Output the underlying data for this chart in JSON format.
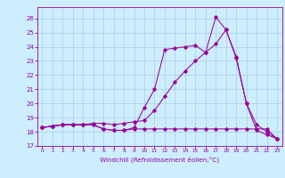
{
  "xlabel": "Windchill (Refroidissement éolien,°C)",
  "bg_color": "#cceeff",
  "line_color": "#990099",
  "grid_color": "#aaccdd",
  "xlim": [
    -0.5,
    23.5
  ],
  "ylim": [
    17,
    26.8
  ],
  "yticks": [
    17,
    18,
    19,
    20,
    21,
    22,
    23,
    24,
    25,
    26
  ],
  "xticks": [
    0,
    1,
    2,
    3,
    4,
    5,
    6,
    7,
    8,
    9,
    10,
    11,
    12,
    13,
    14,
    15,
    16,
    17,
    18,
    19,
    20,
    21,
    22,
    23
  ],
  "line1_x": [
    0,
    1,
    2,
    3,
    4,
    5,
    6,
    7,
    8,
    9,
    10,
    11,
    12,
    13,
    14,
    15,
    16,
    17,
    18,
    19,
    20,
    21,
    22,
    23
  ],
  "line1_y": [
    18.3,
    18.4,
    18.5,
    18.5,
    18.5,
    18.5,
    18.2,
    18.1,
    18.1,
    18.3,
    19.7,
    21.0,
    23.8,
    23.9,
    24.0,
    24.1,
    23.6,
    26.1,
    25.2,
    23.3,
    20.0,
    18.1,
    17.8,
    17.5
  ],
  "line2_x": [
    0,
    1,
    2,
    3,
    4,
    5,
    6,
    7,
    8,
    9,
    10,
    11,
    12,
    13,
    14,
    15,
    16,
    17,
    18,
    19,
    20,
    21,
    22,
    23
  ],
  "line2_y": [
    18.3,
    18.4,
    18.5,
    18.5,
    18.5,
    18.6,
    18.6,
    18.5,
    18.6,
    18.7,
    18.8,
    19.5,
    20.5,
    21.5,
    22.3,
    23.0,
    23.6,
    24.2,
    25.2,
    23.2,
    20.0,
    18.5,
    18.0,
    17.5
  ],
  "line3_x": [
    0,
    1,
    2,
    3,
    4,
    5,
    6,
    7,
    8,
    9,
    10,
    11,
    12,
    13,
    14,
    15,
    16,
    17,
    18,
    19,
    20,
    21,
    22,
    23
  ],
  "line3_y": [
    18.3,
    18.4,
    18.5,
    18.5,
    18.5,
    18.5,
    18.2,
    18.1,
    18.1,
    18.2,
    18.2,
    18.2,
    18.2,
    18.2,
    18.2,
    18.2,
    18.2,
    18.2,
    18.2,
    18.2,
    18.2,
    18.2,
    18.2,
    17.5
  ]
}
